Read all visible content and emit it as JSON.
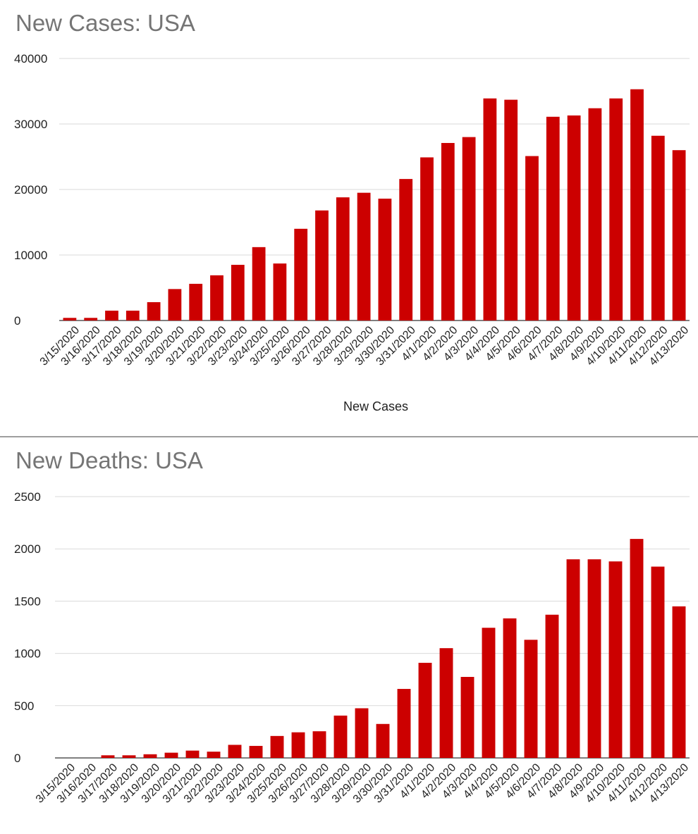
{
  "chart_data": [
    {
      "type": "bar",
      "title": "New Cases: USA",
      "xlabel": "New Cases",
      "ylabel": "",
      "ylim": [
        0,
        40000
      ],
      "yticks": [
        "0",
        "10000",
        "20000",
        "30000",
        "40000"
      ],
      "grid": true,
      "bar_color": "#cc0000",
      "categories": [
        "3/15/2020",
        "3/16/2020",
        "3/17/2020",
        "3/18/2020",
        "3/19/2020",
        "3/20/2020",
        "3/21/2020",
        "3/22/2020",
        "3/23/2020",
        "3/24/2020",
        "3/25/2020",
        "3/26/2020",
        "3/27/2020",
        "3/28/2020",
        "3/29/2020",
        "3/30/2020",
        "3/31/2020",
        "4/1/2020",
        "4/2/2020",
        "4/3/2020",
        "4/4/2020",
        "4/5/2020",
        "4/6/2020",
        "4/7/2020",
        "4/8/2020",
        "4/9/2020",
        "4/10/2020",
        "4/11/2020",
        "4/12/2020",
        "4/13/2020"
      ],
      "values": [
        400,
        400,
        1500,
        1500,
        2800,
        4800,
        5600,
        6900,
        8500,
        11200,
        8700,
        14000,
        16800,
        18800,
        19500,
        18600,
        21600,
        24900,
        27100,
        28000,
        33900,
        33700,
        25100,
        31100,
        31300,
        32400,
        33900,
        35300,
        28200,
        26000
      ]
    },
    {
      "type": "bar",
      "title": "New Deaths: USA",
      "xlabel": "",
      "ylabel": "",
      "ylim": [
        0,
        2500
      ],
      "yticks": [
        "0",
        "500",
        "1000",
        "1500",
        "2000",
        "2500"
      ],
      "grid": true,
      "bar_color": "#cc0000",
      "categories": [
        "3/15/2020",
        "3/16/2020",
        "3/17/2020",
        "3/18/2020",
        "3/19/2020",
        "3/20/2020",
        "3/21/2020",
        "3/22/2020",
        "3/23/2020",
        "3/24/2020",
        "3/25/2020",
        "3/26/2020",
        "3/27/2020",
        "3/28/2020",
        "3/29/2020",
        "3/30/2020",
        "3/31/2020",
        "4/1/2020",
        "4/2/2020",
        "4/3/2020",
        "4/4/2020",
        "4/5/2020",
        "4/6/2020",
        "4/7/2020",
        "4/8/2020",
        "4/9/2020",
        "4/10/2020",
        "4/11/2020",
        "4/12/2020",
        "4/13/2020"
      ],
      "values": [
        0,
        0,
        25,
        25,
        35,
        50,
        70,
        60,
        125,
        115,
        210,
        245,
        255,
        405,
        475,
        325,
        660,
        910,
        1050,
        775,
        1245,
        1335,
        1130,
        1370,
        1900,
        1900,
        1880,
        2095,
        1830,
        1450
      ]
    }
  ]
}
